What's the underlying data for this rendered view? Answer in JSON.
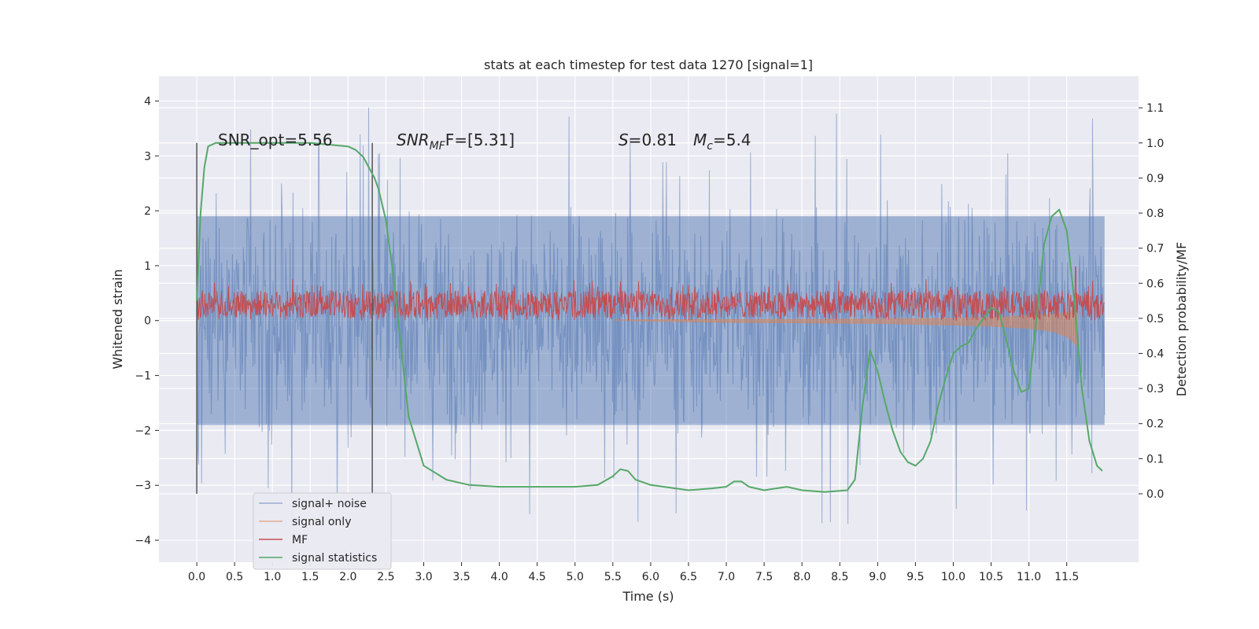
{
  "chart_data": {
    "type": "line",
    "title": "stats at each timestep for test data 1270 [signal=1]",
    "xlabel": "Time (s)",
    "ylabel_left": "Whitened strain",
    "ylabel_right": "Detection probability/MF",
    "xlim": [
      -0.5,
      12.45
    ],
    "ylim_left": [
      -4.4,
      4.45
    ],
    "ylim_right": [
      -0.195,
      1.19
    ],
    "x_ticks": [
      "0.0",
      "0.5",
      "1.0",
      "1.5",
      "2.0",
      "2.5",
      "3.0",
      "3.5",
      "4.0",
      "4.5",
      "5.0",
      "5.5",
      "6.0",
      "6.5",
      "7.0",
      "7.5",
      "8.0",
      "8.5",
      "9.0",
      "9.5",
      "10.0",
      "10.5",
      "11.0",
      "11.5"
    ],
    "y_ticks_left": [
      "4",
      "3",
      "2",
      "1",
      "0",
      "−1",
      "−2",
      "−3",
      "−4"
    ],
    "y_ticks_right": [
      "1.1",
      "1.0",
      "0.9",
      "0.8",
      "0.7",
      "0.6",
      "0.5",
      "0.4",
      "0.3",
      "0.2",
      "0.1",
      "0.0"
    ],
    "grid": true,
    "legend_position": "lower-left",
    "annotations": {
      "snr_opt": "SNR_opt=5.56",
      "snr_mf_main": "SNR",
      "snr_mf_sub": "MF",
      "snr_mf_value": "F=[5.31]",
      "s_main": "S",
      "s_value": "=0.81",
      "mc_main": "M",
      "mc_sub": "c",
      "mc_value": "=5.4"
    },
    "vlines_x": [
      0.0,
      2.32
    ],
    "series": [
      {
        "name": "signal+ noise",
        "color": "#4c72b0",
        "envelope": {
          "x": [
            0.0,
            12.0
          ],
          "upper_typical": [
            1.9,
            1.9
          ],
          "lower_typical": [
            -1.9,
            -1.9
          ],
          "max": 4.1,
          "min": -3.95
        }
      },
      {
        "name": "signal only",
        "color": "#dd8452",
        "x": [
          5.5,
          6.0,
          7.0,
          8.0,
          9.0,
          10.0,
          10.5,
          11.0,
          11.3,
          11.5,
          11.6,
          11.65
        ],
        "upper": [
          0.02,
          0.02,
          0.03,
          0.03,
          0.04,
          0.05,
          0.07,
          0.1,
          0.12,
          0.15,
          0.2,
          0.25
        ],
        "lower": [
          0.0,
          -0.02,
          -0.04,
          -0.05,
          -0.06,
          -0.09,
          -0.11,
          -0.15,
          -0.2,
          -0.3,
          -0.42,
          -0.5
        ]
      },
      {
        "name": "MF",
        "color": "#c44e52",
        "x_range": [
          0.0,
          12.0
        ],
        "typical_min": 0.05,
        "typical_max": 0.55,
        "peak_x": 11.62,
        "peak_y": 0.98
      },
      {
        "name": "signal statistics",
        "color": "#55a868",
        "x": [
          0.0,
          0.05,
          0.1,
          0.15,
          0.25,
          0.5,
          1.0,
          1.5,
          2.0,
          2.1,
          2.2,
          2.3,
          2.35,
          2.4,
          2.5,
          2.6,
          2.7,
          2.8,
          3.0,
          3.3,
          3.6,
          4.0,
          4.5,
          5.0,
          5.3,
          5.5,
          5.6,
          5.7,
          5.8,
          6.0,
          6.5,
          6.8,
          7.0,
          7.1,
          7.2,
          7.3,
          7.5,
          7.8,
          8.0,
          8.3,
          8.6,
          8.7,
          8.8,
          8.9,
          9.0,
          9.1,
          9.2,
          9.3,
          9.4,
          9.5,
          9.6,
          9.7,
          9.8,
          9.9,
          10.0,
          10.1,
          10.2,
          10.3,
          10.4,
          10.5,
          10.6,
          10.7,
          10.8,
          10.9,
          11.0,
          11.1,
          11.2,
          11.3,
          11.4,
          11.5,
          11.6,
          11.7,
          11.8,
          11.9,
          11.97
        ],
        "y": [
          0.55,
          0.8,
          0.93,
          0.99,
          1.0,
          1.0,
          1.0,
          1.0,
          0.99,
          0.98,
          0.96,
          0.92,
          0.9,
          0.87,
          0.78,
          0.62,
          0.42,
          0.22,
          0.08,
          0.04,
          0.025,
          0.02,
          0.02,
          0.02,
          0.025,
          0.05,
          0.07,
          0.065,
          0.04,
          0.025,
          0.01,
          0.015,
          0.02,
          0.035,
          0.035,
          0.02,
          0.01,
          0.02,
          0.01,
          0.005,
          0.01,
          0.04,
          0.25,
          0.41,
          0.35,
          0.26,
          0.18,
          0.12,
          0.09,
          0.08,
          0.1,
          0.15,
          0.25,
          0.33,
          0.4,
          0.42,
          0.43,
          0.47,
          0.5,
          0.53,
          0.52,
          0.44,
          0.35,
          0.29,
          0.3,
          0.5,
          0.71,
          0.79,
          0.81,
          0.75,
          0.55,
          0.3,
          0.15,
          0.08,
          0.065
        ]
      }
    ]
  }
}
